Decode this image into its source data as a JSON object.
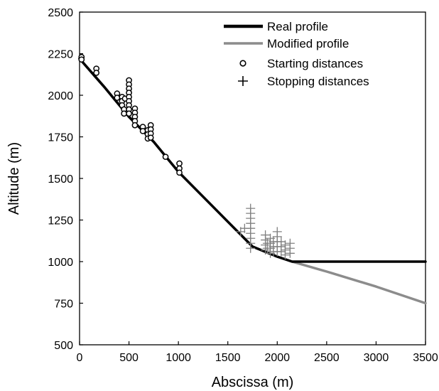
{
  "chart_data": {
    "type": "line",
    "xlabel": "Abscissa (m)",
    "ylabel": "Altitude (m)",
    "xlim": [
      0,
      3500
    ],
    "ylim": [
      500,
      2500
    ],
    "xticks": [
      0,
      500,
      1000,
      1500,
      2000,
      2500,
      3000,
      3500
    ],
    "yticks": [
      500,
      750,
      1000,
      1250,
      1500,
      1750,
      2000,
      2250,
      2500
    ],
    "grid": false,
    "legend_position": "top-right",
    "colors": {
      "real": "#000000",
      "modified": "#8c8c8c",
      "stopping": "#808080",
      "starting": "#000000"
    },
    "series": [
      {
        "name": "Real profile",
        "kind": "line",
        "x": [
          0,
          250,
          500,
          750,
          1000,
          1250,
          1500,
          1750,
          2000,
          2150,
          3500
        ],
        "y": [
          2220,
          2050,
          1870,
          1720,
          1540,
          1390,
          1240,
          1090,
          1030,
          1000,
          1000
        ]
      },
      {
        "name": "Modified profile",
        "kind": "line",
        "x": [
          0,
          250,
          500,
          750,
          1000,
          1250,
          1500,
          1750,
          2000,
          2150,
          2500,
          3000,
          3500
        ],
        "y": [
          2220,
          2050,
          1870,
          1720,
          1540,
          1390,
          1240,
          1090,
          1030,
          1000,
          940,
          850,
          750
        ]
      },
      {
        "name": "Starting distances",
        "kind": "scatter",
        "marker": "circle",
        "x": [
          20,
          20,
          170,
          170,
          380,
          380,
          430,
          430,
          430,
          450,
          450,
          460,
          500,
          500,
          500,
          500,
          500,
          500,
          500,
          500,
          500,
          560,
          560,
          560,
          560,
          560,
          640,
          640,
          690,
          690,
          690,
          720,
          720,
          720,
          720,
          870,
          1010,
          1010,
          1010
        ],
        "y": [
          2230,
          2215,
          2160,
          2135,
          2010,
          1985,
          1990,
          1965,
          1940,
          1915,
          1890,
          1980,
          2090,
          2065,
          2040,
          2015,
          1990,
          1965,
          1940,
          1915,
          1890,
          1920,
          1895,
          1870,
          1845,
          1820,
          1810,
          1785,
          1790,
          1765,
          1740,
          1820,
          1795,
          1770,
          1745,
          1630,
          1590,
          1560,
          1535
        ]
      },
      {
        "name": "Stopping distances",
        "kind": "scatter",
        "marker": "plus",
        "x": [
          1630,
          1670,
          1730,
          1730,
          1730,
          1730,
          1730,
          1730,
          1730,
          1730,
          1730,
          1880,
          1880,
          1880,
          1880,
          1900,
          1900,
          1930,
          1930,
          1930,
          1930,
          1960,
          1960,
          1960,
          2000,
          2000,
          2000,
          2000,
          2000,
          2040,
          2040,
          2040,
          2080,
          2080,
          2080,
          2130,
          2130,
          2130
        ],
        "y": [
          1180,
          1200,
          1320,
          1290,
          1260,
          1230,
          1200,
          1170,
          1140,
          1110,
          1080,
          1160,
          1130,
          1100,
          1070,
          1110,
          1080,
          1140,
          1110,
          1080,
          1050,
          1120,
          1090,
          1060,
          1180,
          1150,
          1120,
          1090,
          1060,
          1120,
          1090,
          1060,
          1100,
          1070,
          1040,
          1110,
          1080,
          1050
        ]
      }
    ]
  }
}
